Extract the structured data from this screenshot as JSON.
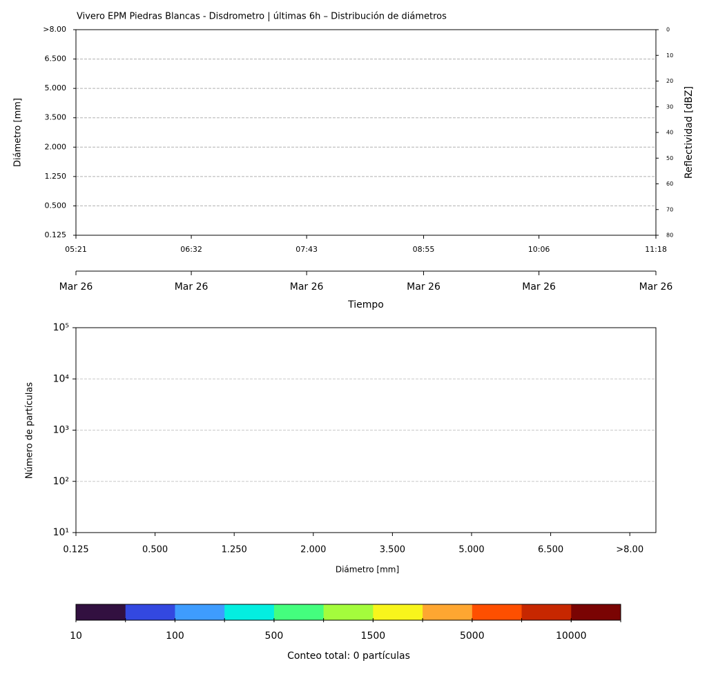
{
  "chart_data": [
    {
      "type": "heatmap",
      "title": "Vivero EPM Piedras Blancas - Disdrometro | últimas 6h – Distribución de diámetros",
      "y_label": "Diámetro [mm]",
      "ylim": [
        0,
        7
      ],
      "yticks": [
        {
          "value": 0,
          "label": "0.125"
        },
        {
          "value": 1,
          "label": "0.500"
        },
        {
          "value": 2,
          "label": "1.250"
        },
        {
          "value": 3,
          "label": "2.000"
        },
        {
          "value": 4,
          "label": "3.500"
        },
        {
          "value": 5,
          "label": "5.000"
        },
        {
          "value": 6,
          "label": "6.500"
        },
        {
          "value": 7,
          "label": ">8.00"
        }
      ],
      "grid": true,
      "xlim": [
        "05:21",
        "11:18"
      ],
      "xticks": [
        "05:21",
        "06:32",
        "07:43",
        "08:55",
        "10:06",
        "11:18"
      ],
      "date_ticks": [
        "Mar 26",
        "Mar 26",
        "Mar 26",
        "Mar 26",
        "Mar 26",
        "Mar 26"
      ],
      "x_label": "Tiempo",
      "y2_label": "Reflectividad [dBZ]",
      "y2lim": [
        80,
        0
      ],
      "y2ticks": [
        0,
        10,
        20,
        30,
        40,
        50,
        60,
        70,
        80
      ]
    },
    {
      "type": "bar",
      "log_y": true,
      "y_label": "Número de partículas",
      "x_label": "Diámetro [mm]",
      "ylim": [
        10,
        100000
      ],
      "yticks": [
        {
          "value": 10,
          "label": "10¹"
        },
        {
          "value": 100,
          "label": "10²"
        },
        {
          "value": 1000,
          "label": "10³"
        },
        {
          "value": 10000,
          "label": "10⁴"
        },
        {
          "value": 100000,
          "label": "10⁵"
        }
      ],
      "grid": true,
      "xlim": [
        0,
        7.33
      ],
      "xticks": [
        {
          "value": 0,
          "label": "0.125"
        },
        {
          "value": 1,
          "label": "0.500"
        },
        {
          "value": 2,
          "label": "1.250"
        },
        {
          "value": 3,
          "label": "2.000"
        },
        {
          "value": 4,
          "label": "3.500"
        },
        {
          "value": 5,
          "label": "5.000"
        },
        {
          "value": 6,
          "label": "6.500"
        },
        {
          "value": 7,
          "label": ">8.00"
        }
      ]
    },
    {
      "type": "colorbar",
      "label": "Conteo total: 0 partículas",
      "colors": [
        "#321040",
        "#3348e0",
        "#3e9cfe",
        "#04eee0",
        "#44fe7e",
        "#a4fc3c",
        "#f8f51c",
        "#fea631",
        "#fe4f00",
        "#c72700",
        "#7a0403"
      ],
      "ticks": [
        10,
        null,
        100,
        null,
        500,
        null,
        1500,
        null,
        5000,
        null,
        10000,
        null
      ]
    }
  ]
}
